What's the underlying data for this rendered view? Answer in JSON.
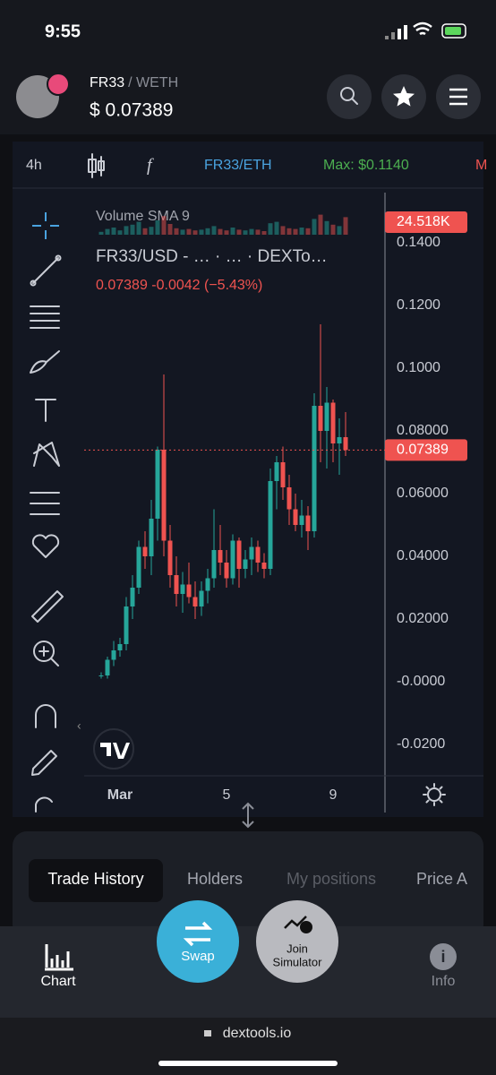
{
  "status_bar": {
    "time": "9:55"
  },
  "header": {
    "base": "FR33",
    "quote": "/ WETH",
    "price": "$ 0.07389"
  },
  "toolbar": {
    "interval": "4h",
    "symbol": "FR33/ETH",
    "max": "Max: $0.1140",
    "more": "M"
  },
  "chart_data": {
    "type": "candlestick",
    "volume_title": "Volume SMA 9",
    "title": "FR33/USD - …  · …  · DEXTo…",
    "subtitle": "0.07389  -0.0042 (−5.43%)",
    "volume_label": "24.518K",
    "last_price": 0.07389,
    "up_color": "#26a69a",
    "down_color": "#ef5350",
    "categories": [
      null,
      null,
      null,
      "Mar",
      null,
      null,
      null,
      null,
      null,
      null,
      null,
      null,
      null,
      null,
      null,
      null,
      null,
      null,
      null,
      null,
      "5",
      null,
      null,
      null,
      null,
      null,
      null,
      null,
      null,
      null,
      null,
      null,
      null,
      null,
      null,
      null,
      null,
      "9",
      null,
      null
    ],
    "open": [
      0.002,
      0.002,
      0.007,
      0.01,
      0.012,
      0.024,
      0.03,
      0.043,
      0.04,
      0.052,
      0.074,
      0.045,
      0.034,
      0.028,
      0.031,
      0.027,
      0.024,
      0.029,
      0.033,
      0.042,
      0.038,
      0.033,
      0.045,
      0.036,
      0.039,
      0.043,
      0.038,
      0.036,
      0.064,
      0.07,
      0.062,
      0.055,
      0.05,
      0.053,
      0.048,
      0.088,
      0.08,
      0.089,
      0.076,
      0.078
    ],
    "high": [
      0.003,
      0.008,
      0.013,
      0.014,
      0.027,
      0.034,
      0.045,
      0.048,
      0.058,
      0.075,
      0.098,
      0.05,
      0.04,
      0.035,
      0.038,
      0.032,
      0.032,
      0.036,
      0.055,
      0.05,
      0.042,
      0.047,
      0.046,
      0.042,
      0.046,
      0.045,
      0.041,
      0.068,
      0.072,
      0.075,
      0.066,
      0.06,
      0.058,
      0.056,
      0.092,
      0.114,
      0.094,
      0.09,
      0.084,
      0.086
    ],
    "low": [
      0.001,
      0.001,
      0.005,
      0.008,
      0.01,
      0.02,
      0.028,
      0.036,
      0.034,
      0.045,
      0.04,
      0.03,
      0.024,
      0.022,
      0.025,
      0.02,
      0.021,
      0.025,
      0.03,
      0.034,
      0.03,
      0.031,
      0.03,
      0.033,
      0.034,
      0.035,
      0.033,
      0.034,
      0.055,
      0.058,
      0.05,
      0.048,
      0.046,
      0.042,
      0.046,
      0.07,
      0.068,
      0.07,
      0.066,
      0.072
    ],
    "close": [
      0.002,
      0.007,
      0.01,
      0.012,
      0.024,
      0.03,
      0.043,
      0.04,
      0.052,
      0.074,
      0.045,
      0.034,
      0.028,
      0.031,
      0.027,
      0.024,
      0.029,
      0.033,
      0.042,
      0.038,
      0.033,
      0.045,
      0.036,
      0.039,
      0.043,
      0.038,
      0.036,
      0.064,
      0.07,
      0.062,
      0.055,
      0.05,
      0.053,
      0.048,
      0.088,
      0.08,
      0.089,
      0.076,
      0.078,
      0.07389
    ],
    "volume": [
      4,
      8,
      10,
      6,
      12,
      14,
      18,
      9,
      11,
      20,
      26,
      15,
      9,
      7,
      8,
      6,
      7,
      9,
      12,
      8,
      6,
      10,
      7,
      6,
      8,
      7,
      5,
      16,
      18,
      12,
      9,
      8,
      10,
      9,
      22,
      28,
      19,
      14,
      12,
      24.518
    ],
    "ylim": [
      -0.028,
      0.156
    ],
    "yticks": [
      {
        "value": 0.14,
        "label": "0.1400"
      },
      {
        "value": 0.12,
        "label": "0.1200"
      },
      {
        "value": 0.1,
        "label": "0.1000"
      },
      {
        "value": 0.08,
        "label": "0.08000"
      },
      {
        "value": 0.06,
        "label": "0.06000"
      },
      {
        "value": 0.04,
        "label": "0.04000"
      },
      {
        "value": 0.02,
        "label": "0.02000"
      },
      {
        "value": 0,
        "label": "-0.0000"
      },
      {
        "value": -0.02,
        "label": "-0.0200"
      }
    ]
  },
  "tabs": [
    "Trade History",
    "Holders",
    "My positions",
    "Price A"
  ],
  "nav": {
    "chart": "Chart",
    "swap": "Swap",
    "simulator_1": "Join",
    "simulator_2": "Simulator",
    "info": "Info"
  },
  "url": "dextools.io"
}
